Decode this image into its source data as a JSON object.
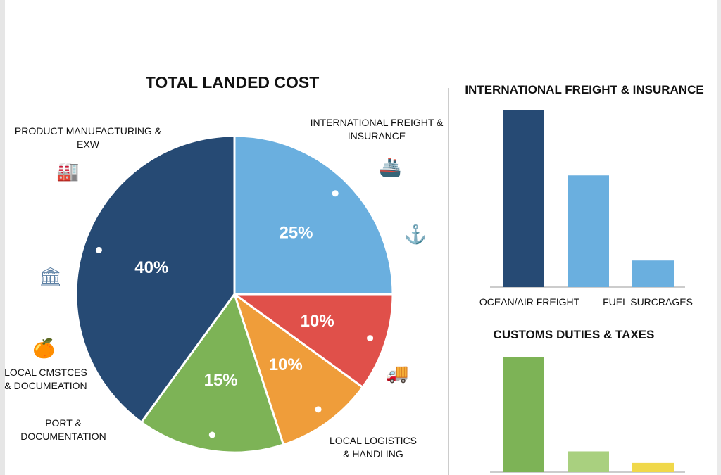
{
  "chart_data": [
    {
      "type": "pie",
      "title": "TOTAL LANDED COST",
      "slices": [
        {
          "label": "INTERNATIONAL FREIGHT & INSURANCE",
          "value_label": "25%",
          "value": 25,
          "color": "#6aafdf",
          "icon": "ship-icon"
        },
        {
          "label": "LOCAL LOGISTICS & HANDLING",
          "value_label": "10%",
          "value": 10,
          "color": "#e0504a",
          "icon": "truck-icon"
        },
        {
          "label": "PORT & DOCUMENTATION",
          "value_label": "10%",
          "value": 10,
          "color": "#ef9d3a",
          "icon": ""
        },
        {
          "label": "LOCAL CMSTCES & DOCUMEATION",
          "value_label": "15%",
          "value": 15,
          "color": "#7db356",
          "icon": "fruit-icon"
        },
        {
          "label": "PRODUCT MANUFACTURING & EXW",
          "value_label": "40%",
          "value": 40,
          "color": "#264a74",
          "icon": "factory-icon"
        }
      ],
      "extra_icons": [
        "anchor-icon",
        "bank-icon"
      ]
    },
    {
      "type": "bar",
      "title": "INTERNATIONAL FREIGHT & INSURANCE",
      "categories": [
        "OCEAN/AIR FREIGHT",
        "",
        "FUEL SURCRAGES"
      ],
      "values": [
        100,
        63,
        15
      ],
      "colors": [
        "#264a74",
        "#6aafdf",
        "#6aafdf"
      ]
    },
    {
      "type": "bar",
      "title": "CUSTOMS DUTIES & TAXES",
      "categories": [
        "",
        "",
        ""
      ],
      "values": [
        100,
        18,
        8
      ],
      "colors": [
        "#7db356",
        "#a9d07f",
        "#f0d84a"
      ]
    }
  ]
}
